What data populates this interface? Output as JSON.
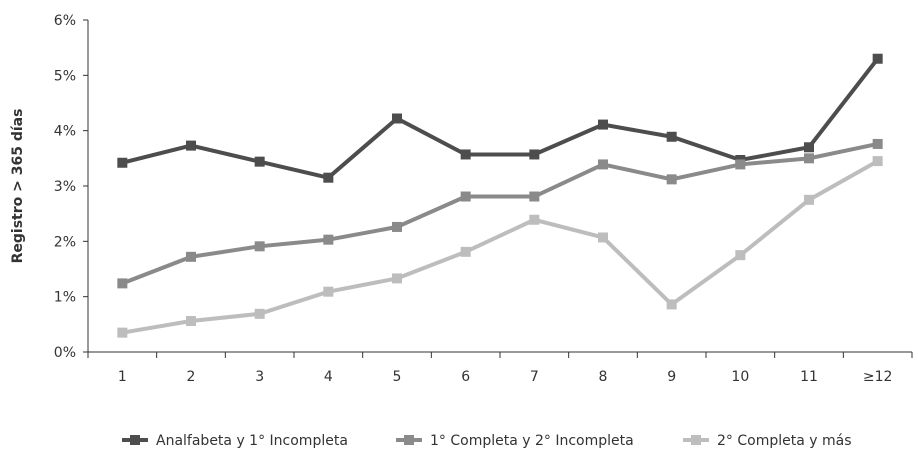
{
  "chart_data": {
    "type": "line",
    "ylabel": "Registro > 365 días",
    "xlabel": "",
    "categories": [
      "1",
      "2",
      "3",
      "4",
      "5",
      "6",
      "7",
      "8",
      "9",
      "10",
      "11",
      "≥12"
    ],
    "yticks": [
      "0%",
      "1%",
      "2%",
      "3%",
      "4%",
      "5%",
      "6%"
    ],
    "ylim": [
      0,
      6
    ],
    "grid": false,
    "legend_position": "bottom",
    "series": [
      {
        "name": "Analfabeta y 1° Incompleta",
        "color": "#4d4d4d",
        "values": [
          3.42,
          3.73,
          3.44,
          3.15,
          4.22,
          3.57,
          3.57,
          4.11,
          3.89,
          3.47,
          3.7,
          5.3
        ]
      },
      {
        "name": "1° Completa y 2° Incompleta",
        "color": "#8a8a8a",
        "values": [
          1.24,
          1.72,
          1.91,
          2.03,
          2.26,
          2.81,
          2.81,
          3.39,
          3.12,
          3.39,
          3.5,
          3.76
        ]
      },
      {
        "name": "2° Completa y más",
        "color": "#bdbdbd",
        "values": [
          0.35,
          0.56,
          0.69,
          1.09,
          1.33,
          1.81,
          2.39,
          2.07,
          0.86,
          1.75,
          2.75,
          3.45
        ]
      }
    ]
  }
}
